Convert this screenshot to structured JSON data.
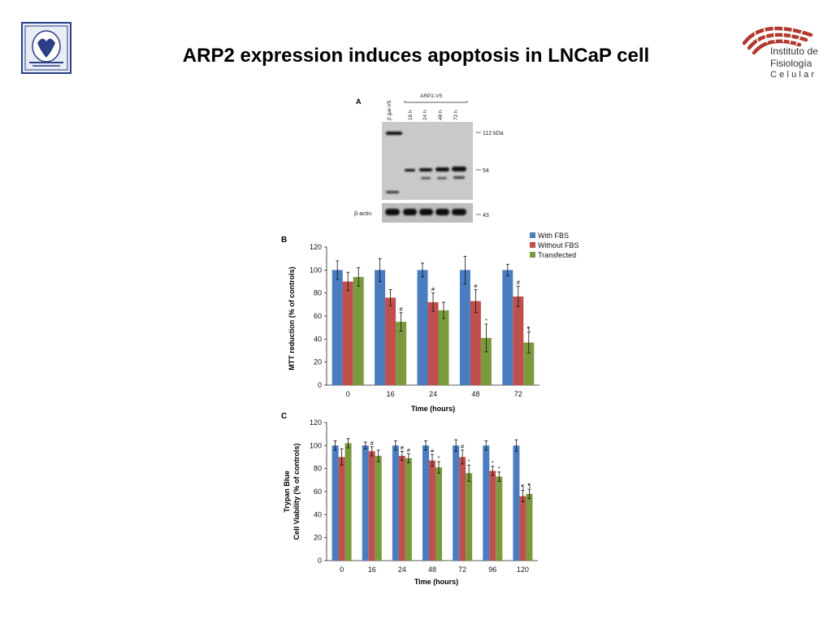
{
  "slide": {
    "title": "ARP2 expression induces apoptosis in LNCaP cell",
    "ifc_logo": {
      "line1": "Instituto de",
      "line2": "Fisiología",
      "line3": "Celular"
    }
  },
  "colors": {
    "with_fbs": "#4a7dbf",
    "without_fbs": "#c0504d",
    "transfected": "#7a9a3e"
  },
  "panel_a": {
    "panel_label": "A",
    "lanes": [
      "β gal-V5",
      "16 h",
      "24 h",
      "48 h",
      "72 h"
    ],
    "group_label": "ARP2-V5",
    "markers": [
      "112 kDa",
      "54",
      "43"
    ],
    "row_label": "β-actin"
  },
  "chart_data": [
    {
      "type": "bar",
      "panel_label": "B",
      "categories": [
        "0",
        "16",
        "24",
        "48",
        "72"
      ],
      "series": [
        {
          "name": "With FBS",
          "values": [
            100,
            100,
            100,
            100,
            100
          ],
          "errors": [
            8,
            10,
            6,
            12,
            5
          ]
        },
        {
          "name": "Without FBS",
          "values": [
            90,
            76,
            72,
            73,
            77
          ],
          "errors": [
            8,
            7,
            8,
            10,
            9
          ]
        },
        {
          "name": "Transfected",
          "values": [
            94,
            55,
            65,
            41,
            37
          ],
          "errors": [
            8,
            8,
            7,
            12,
            9
          ]
        }
      ],
      "annotations": [
        {
          "series": 1,
          "index": 2,
          "text": "#"
        },
        {
          "series": 1,
          "index": 3,
          "text": "#"
        },
        {
          "series": 1,
          "index": 4,
          "text": "#"
        },
        {
          "series": 2,
          "index": 1,
          "text": "#"
        },
        {
          "series": 2,
          "index": 3,
          "text": "*"
        },
        {
          "series": 2,
          "index": 4,
          "text": "¶"
        }
      ],
      "xlabel": "Time (hours)",
      "ylabel": "MTT  reduction  (% of controls)",
      "ylim": [
        0,
        120
      ],
      "yticks": [
        0,
        20,
        40,
        60,
        80,
        100,
        120
      ],
      "legend": "top-right",
      "grid": false
    },
    {
      "type": "bar",
      "panel_label": "C",
      "categories": [
        "0",
        "16",
        "24",
        "48",
        "72",
        "96",
        "120"
      ],
      "series": [
        {
          "name": "With FBS",
          "values": [
            100,
            100,
            100,
            100,
            100,
            100,
            100
          ],
          "errors": [
            4,
            3,
            4,
            4,
            5,
            4,
            5
          ]
        },
        {
          "name": "Without FBS",
          "values": [
            90,
            95,
            91,
            87,
            90,
            78,
            56
          ],
          "errors": [
            7,
            4,
            4,
            5,
            6,
            4,
            5
          ]
        },
        {
          "name": "Transfected",
          "values": [
            102,
            91,
            89,
            81,
            76,
            73,
            58
          ],
          "errors": [
            4,
            5,
            4,
            5,
            7,
            4,
            4
          ]
        }
      ],
      "annotations": [
        {
          "series": 1,
          "index": 1,
          "text": "#"
        },
        {
          "series": 1,
          "index": 2,
          "text": "#"
        },
        {
          "series": 2,
          "index": 2,
          "text": "#"
        },
        {
          "series": 1,
          "index": 3,
          "text": "#"
        },
        {
          "series": 2,
          "index": 3,
          "text": "*"
        },
        {
          "series": 1,
          "index": 4,
          "text": "#"
        },
        {
          "series": 2,
          "index": 4,
          "text": "*"
        },
        {
          "series": 1,
          "index": 5,
          "text": "*"
        },
        {
          "series": 2,
          "index": 5,
          "text": "*"
        },
        {
          "series": 1,
          "index": 6,
          "text": "¶"
        },
        {
          "series": 2,
          "index": 6,
          "text": "¶"
        }
      ],
      "xlabel": "Time (hours)",
      "ylabel": [
        "Trypan Blue",
        "Cell Viability  (% of controls)"
      ],
      "ylim": [
        0,
        120
      ],
      "yticks": [
        0,
        20,
        40,
        60,
        80,
        100,
        120
      ],
      "grid": false
    }
  ]
}
